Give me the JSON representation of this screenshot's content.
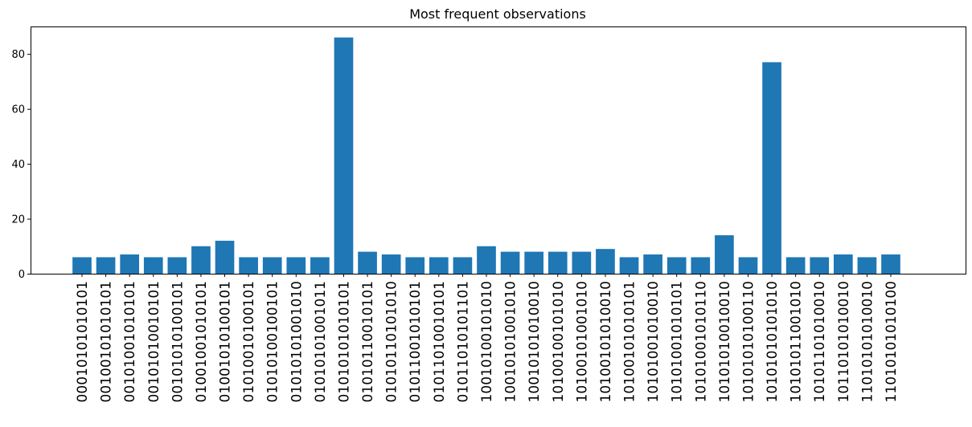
{
  "chart_data": {
    "type": "bar",
    "title": "Most frequent observations",
    "xlabel": "",
    "ylabel": "",
    "ylim": [
      0,
      90
    ],
    "yticks": [
      0,
      20,
      40,
      60,
      80
    ],
    "grid": false,
    "bar_color": "#1f77b4",
    "categories": [
      "00010101010101",
      "00100101010101",
      "00101001010101",
      "00101010010101",
      "00101010100101",
      "01001001010101",
      "01001010100101",
      "01010010100101",
      "01010100100101",
      "01010101001010",
      "01010101001011",
      "01010101010101",
      "01010110010101",
      "01010110101010",
      "01011001010101",
      "01011010010101",
      "01011010101101",
      "10010100101010",
      "10010101001010",
      "10010101010010",
      "10100100101010",
      "10100101001010",
      "10100101010010",
      "10100101010101",
      "10101001010010",
      "10101001010101",
      "10101001010110",
      "10101010010010",
      "10101010100110",
      "10101010101010",
      "10101011001010",
      "10101101010010",
      "10110101010010",
      "11010101010010",
      "11010101010100"
    ],
    "values": [
      6,
      6,
      7,
      6,
      6,
      10,
      12,
      6,
      6,
      6,
      6,
      86,
      8,
      7,
      6,
      6,
      6,
      10,
      8,
      8,
      8,
      8,
      9,
      6,
      7,
      6,
      6,
      14,
      6,
      77,
      6,
      6,
      7,
      6,
      7
    ]
  }
}
